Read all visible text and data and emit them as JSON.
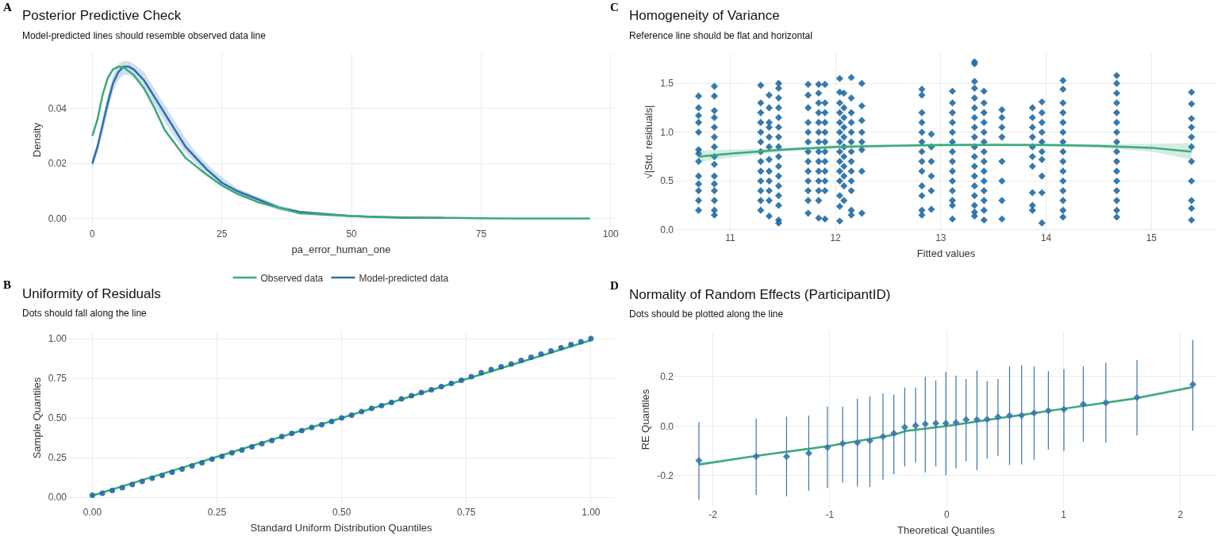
{
  "chart_data": [
    {
      "type": "line",
      "title": "Posterior Predictive Check",
      "subtitle": "Model-predicted lines should resemble observed data line",
      "xlabel": "pa_error_human_one",
      "ylabel": "Density",
      "annotations": [
        "A"
      ],
      "xlim": [
        -4.8,
        100.8
      ],
      "ylim": [
        -0.0029,
        0.0599
      ],
      "xticks": [
        0,
        25,
        50,
        75,
        100
      ],
      "yticks": [
        {
          "value": 0,
          "label": "0.00"
        },
        {
          "value": 0.02,
          "label": "0.02"
        },
        {
          "value": 0.04,
          "label": "0.04"
        }
      ],
      "grid": true,
      "legend": "bottom",
      "series": [
        {
          "name": "Model-predicted data",
          "color": "#2c6fae",
          "x": [
            0,
            1,
            2,
            3,
            4,
            5,
            6,
            7,
            8,
            10,
            12,
            14,
            16,
            18,
            20,
            22,
            25,
            28,
            32,
            36,
            40,
            45,
            50,
            55,
            60,
            68
          ],
          "values": [
            0.02,
            0.026,
            0.034,
            0.042,
            0.049,
            0.053,
            0.055,
            0.055,
            0.054,
            0.05,
            0.044,
            0.038,
            0.032,
            0.026,
            0.022,
            0.018,
            0.013,
            0.01,
            0.007,
            0.004,
            0.0025,
            0.0017,
            0.001,
            0.0007,
            0.0005,
            0.0003
          ],
          "lower": [
            0.018,
            0.024,
            0.031,
            0.039,
            0.046,
            0.05,
            0.052,
            0.052,
            0.051,
            0.047,
            0.041,
            0.035,
            0.029,
            0.024,
            0.02,
            0.016,
            0.012,
            0.009,
            0.006,
            0.003,
            0.002,
            0.001,
            0.0006,
            0.0004,
            0.0002,
            0.0001
          ],
          "upper": [
            0.022,
            0.028,
            0.037,
            0.045,
            0.052,
            0.056,
            0.057,
            0.057,
            0.056,
            0.053,
            0.047,
            0.041,
            0.035,
            0.029,
            0.024,
            0.02,
            0.015,
            0.011,
            0.008,
            0.005,
            0.003,
            0.0022,
            0.0014,
            0.001,
            0.0008,
            0.0005
          ]
        },
        {
          "name": "Observed data",
          "color": "#3aaa7a",
          "x": [
            0,
            1,
            2,
            3,
            4,
            5,
            6,
            8,
            10,
            12,
            14,
            16,
            18,
            20,
            22,
            25,
            28,
            32,
            36,
            40,
            45,
            50,
            55,
            60,
            70,
            75,
            80,
            96
          ],
          "values": [
            0.03,
            0.036,
            0.045,
            0.051,
            0.054,
            0.055,
            0.0548,
            0.052,
            0.047,
            0.04,
            0.032,
            0.027,
            0.022,
            0.019,
            0.016,
            0.012,
            0.009,
            0.006,
            0.004,
            0.002,
            0.0015,
            0.001,
            0.0006,
            0.0003,
            0.0003,
            0.0002,
            0.0001,
            0.0001
          ]
        }
      ]
    },
    {
      "type": "scatter",
      "title": "Homogeneity of Variance",
      "subtitle": "Reference line should be flat and horizontal",
      "xlabel": "Fitted values",
      "ylabel": "√|Std. residuals|",
      "annotations": [
        "C"
      ],
      "xlim": [
        10.47,
        15.63
      ],
      "ylim": [
        -0.01,
        1.81
      ],
      "xticks": [
        11,
        12,
        13,
        14,
        15
      ],
      "yticks": [
        {
          "value": 0,
          "label": "0.0"
        },
        0.5,
        {
          "value": 1,
          "label": "1.0"
        },
        1.5
      ],
      "grid": true,
      "series": [
        {
          "color": "#1f6aa5",
          "marker": "diamond",
          "x": [
            10.7,
            10.7,
            10.7,
            10.7,
            10.7,
            10.7,
            10.7,
            10.7,
            10.7,
            10.7,
            10.7,
            10.7,
            10.7,
            10.85,
            10.85,
            10.85,
            10.85,
            10.85,
            10.85,
            10.85,
            10.85,
            10.85,
            10.85,
            10.85,
            10.85,
            10.85,
            10.85,
            10.85,
            11.29,
            11.29,
            11.29,
            11.29,
            11.29,
            11.29,
            11.29,
            11.29,
            11.29,
            11.29,
            11.29,
            11.29,
            11.29,
            11.37,
            11.37,
            11.37,
            11.37,
            11.37,
            11.37,
            11.37,
            11.37,
            11.37,
            11.37,
            11.37,
            11.37,
            11.46,
            11.46,
            11.46,
            11.46,
            11.46,
            11.46,
            11.46,
            11.46,
            11.46,
            11.46,
            11.46,
            11.46,
            11.46,
            11.46,
            11.46,
            11.46,
            11.74,
            11.74,
            11.74,
            11.74,
            11.74,
            11.74,
            11.74,
            11.74,
            11.74,
            11.74,
            11.74,
            11.74,
            11.74,
            11.84,
            11.84,
            11.84,
            11.84,
            11.84,
            11.84,
            11.84,
            11.84,
            11.84,
            11.84,
            11.84,
            11.84,
            11.84,
            11.84,
            11.9,
            11.9,
            11.9,
            11.9,
            11.9,
            11.9,
            11.9,
            11.9,
            11.9,
            11.9,
            11.9,
            11.9,
            12.04,
            12.04,
            12.04,
            12.04,
            12.04,
            12.04,
            12.04,
            12.04,
            12.04,
            12.04,
            12.04,
            12.04,
            12.04,
            12.04,
            12.08,
            12.08,
            12.08,
            12.08,
            12.08,
            12.08,
            12.08,
            12.08,
            12.08,
            12.08,
            12.08,
            12.15,
            12.15,
            12.15,
            12.15,
            12.15,
            12.15,
            12.15,
            12.15,
            12.15,
            12.15,
            12.15,
            12.15,
            12.15,
            12.25,
            12.25,
            12.25,
            12.25,
            12.25,
            12.25,
            12.25,
            12.25,
            12.82,
            12.82,
            12.82,
            12.82,
            12.82,
            12.82,
            12.82,
            12.82,
            12.82,
            12.82,
            12.82,
            12.82,
            12.82,
            12.91,
            12.91,
            12.91,
            12.91,
            12.91,
            12.91,
            13.11,
            13.11,
            13.11,
            13.11,
            13.11,
            13.11,
            13.11,
            13.11,
            13.11,
            13.11,
            13.11,
            13.11,
            13.11,
            13.11,
            13.32,
            13.32,
            13.32,
            13.32,
            13.32,
            13.32,
            13.32,
            13.32,
            13.32,
            13.32,
            13.32,
            13.32,
            13.32,
            13.32,
            13.32,
            13.32,
            13.32,
            13.32,
            13.41,
            13.41,
            13.41,
            13.41,
            13.41,
            13.41,
            13.41,
            13.41,
            13.41,
            13.41,
            13.41,
            13.41,
            13.41,
            13.41,
            13.58,
            13.58,
            13.58,
            13.58,
            13.58,
            13.58,
            13.58,
            13.58,
            13.87,
            13.87,
            13.87,
            13.87,
            13.87,
            13.87,
            13.87,
            13.87,
            13.87,
            13.87,
            13.96,
            13.96,
            13.96,
            13.96,
            13.96,
            13.96,
            13.96,
            13.96,
            13.96,
            13.96,
            14.16,
            14.16,
            14.16,
            14.16,
            14.16,
            14.16,
            14.16,
            14.16,
            14.16,
            14.16,
            14.16,
            14.16,
            14.16,
            14.16,
            14.16,
            14.67,
            14.67,
            14.67,
            14.67,
            14.67,
            14.67,
            14.67,
            14.67,
            14.67,
            14.67,
            14.67,
            14.67,
            14.67,
            14.67,
            14.67,
            14.67,
            15.38,
            15.38,
            15.38,
            15.38,
            15.38,
            15.38,
            15.38,
            15.38,
            15.38,
            15.38,
            15.38
          ],
          "values": [
            1.37,
            1.25,
            1.17,
            1.1,
            1.0,
            0.82,
            0.78,
            0.7,
            0.55,
            0.47,
            0.4,
            0.3,
            0.2,
            1.47,
            1.37,
            1.22,
            1.15,
            1.05,
            0.95,
            0.85,
            0.75,
            0.67,
            0.55,
            0.47,
            0.4,
            0.3,
            0.2,
            0.15,
            1.48,
            1.3,
            1.2,
            1.1,
            1.0,
            0.9,
            0.8,
            0.7,
            0.6,
            0.5,
            0.4,
            0.3,
            0.2,
            1.38,
            1.25,
            1.1,
            1.05,
            0.95,
            0.85,
            0.72,
            0.6,
            0.5,
            0.4,
            0.3,
            0.14,
            1.5,
            1.45,
            1.35,
            1.25,
            1.15,
            1.05,
            0.95,
            0.85,
            0.75,
            0.65,
            0.55,
            0.45,
            0.35,
            0.25,
            0.1,
            0.07,
            1.49,
            1.38,
            1.25,
            1.1,
            1.0,
            0.9,
            0.8,
            0.7,
            0.6,
            0.5,
            0.4,
            0.3,
            0.17,
            1.49,
            1.4,
            1.3,
            1.2,
            1.1,
            1.0,
            0.9,
            0.8,
            0.7,
            0.6,
            0.5,
            0.4,
            0.3,
            0.12,
            1.49,
            1.3,
            1.2,
            1.1,
            1.0,
            0.9,
            0.8,
            0.7,
            0.6,
            0.5,
            0.4,
            0.11,
            1.55,
            1.41,
            1.3,
            1.2,
            1.1,
            1.0,
            0.9,
            0.8,
            0.7,
            0.6,
            0.5,
            0.35,
            0.24,
            0.09,
            1.4,
            1.25,
            1.15,
            1.05,
            0.95,
            0.85,
            0.75,
            0.65,
            0.55,
            0.45,
            0.3,
            1.56,
            1.35,
            1.2,
            1.1,
            1.0,
            0.9,
            0.8,
            0.7,
            0.6,
            0.5,
            0.4,
            0.2,
            0.15,
            1.5,
            1.27,
            1.12,
            1.0,
            0.9,
            0.82,
            0.6,
            0.17,
            1.44,
            1.38,
            1.2,
            1.1,
            1.0,
            0.9,
            0.8,
            0.7,
            0.6,
            0.45,
            0.35,
            0.2,
            0.15,
            0.98,
            0.85,
            0.7,
            0.55,
            0.4,
            0.21,
            1.42,
            1.3,
            1.2,
            1.1,
            1.0,
            0.9,
            0.8,
            0.7,
            0.6,
            0.5,
            0.4,
            0.3,
            0.25,
            0.11,
            1.72,
            1.7,
            1.52,
            1.45,
            1.35,
            1.25,
            1.15,
            1.05,
            0.95,
            0.85,
            0.75,
            0.65,
            0.55,
            0.45,
            0.35,
            0.25,
            0.18,
            0.14,
            1.42,
            1.3,
            1.2,
            1.1,
            1.0,
            0.9,
            0.8,
            0.7,
            0.6,
            0.5,
            0.4,
            0.3,
            0.2,
            0.1,
            1.23,
            1.15,
            1.05,
            0.95,
            0.7,
            0.5,
            0.3,
            0.11,
            1.25,
            1.15,
            1.05,
            0.95,
            0.85,
            0.75,
            0.65,
            0.38,
            0.25,
            0.2,
            1.31,
            1.2,
            1.1,
            1.0,
            0.9,
            0.8,
            0.72,
            0.55,
            0.38,
            0.07,
            1.53,
            1.44,
            1.3,
            1.2,
            1.1,
            1.0,
            0.9,
            0.8,
            0.7,
            0.6,
            0.5,
            0.4,
            0.3,
            0.2,
            0.13,
            1.58,
            1.5,
            1.4,
            1.3,
            1.2,
            1.1,
            1.0,
            0.9,
            0.8,
            0.7,
            0.6,
            0.5,
            0.4,
            0.3,
            0.2,
            0.13,
            1.41,
            1.29,
            1.14,
            1.05,
            0.95,
            0.85,
            0.7,
            0.5,
            0.3,
            0.22,
            0.1
          ]
        },
        {
          "type": "line",
          "color": "#3aaa7a",
          "x": [
            10.7,
            11,
            11.5,
            12,
            12.5,
            13,
            13.5,
            14,
            14.5,
            15,
            15.38
          ],
          "values": [
            0.75,
            0.78,
            0.82,
            0.85,
            0.86,
            0.87,
            0.87,
            0.87,
            0.86,
            0.84,
            0.8
          ],
          "lower": [
            0.69,
            0.74,
            0.8,
            0.83,
            0.85,
            0.85,
            0.86,
            0.85,
            0.84,
            0.8,
            0.72
          ],
          "upper": [
            0.81,
            0.82,
            0.84,
            0.87,
            0.88,
            0.88,
            0.89,
            0.88,
            0.88,
            0.88,
            0.89
          ]
        }
      ]
    },
    {
      "type": "scatter",
      "title": "Uniformity of Residuals",
      "subtitle": "Dots should fall along the line",
      "xlabel": "Standard Uniform Distribution Quantiles",
      "ylabel": "Sample Quantiles",
      "annotations": [
        "B"
      ],
      "xlim": [
        -0.05,
        1.048
      ],
      "ylim": [
        -0.05,
        1.05
      ],
      "xticks": [
        {
          "value": 0,
          "label": "0.00"
        },
        {
          "value": 0.25,
          "label": "0.25"
        },
        {
          "value": 0.5,
          "label": "0.50"
        },
        {
          "value": 0.75,
          "label": "0.75"
        },
        {
          "value": 1,
          "label": "1.00"
        }
      ],
      "yticks": [
        {
          "value": 0,
          "label": "0.00"
        },
        {
          "value": 0.25,
          "label": "0.25"
        },
        {
          "value": 0.5,
          "label": "0.50"
        },
        {
          "value": 0.75,
          "label": "0.75"
        },
        {
          "value": 1,
          "label": "1.00"
        }
      ],
      "grid": true,
      "series": [
        {
          "type": "line",
          "color": "#3aaa7a",
          "x": [
            0,
            1
          ],
          "values": [
            0.01,
            0.99
          ]
        },
        {
          "color": "#1f6aa5",
          "marker": "circle",
          "x": [
            0,
            0.02,
            0.04,
            0.06,
            0.08,
            0.1,
            0.12,
            0.14,
            0.16,
            0.18,
            0.2,
            0.22,
            0.24,
            0.26,
            0.28,
            0.3,
            0.32,
            0.34,
            0.36,
            0.38,
            0.4,
            0.42,
            0.44,
            0.46,
            0.48,
            0.5,
            0.52,
            0.54,
            0.56,
            0.58,
            0.6,
            0.62,
            0.64,
            0.66,
            0.68,
            0.7,
            0.72,
            0.74,
            0.76,
            0.78,
            0.8,
            0.82,
            0.84,
            0.86,
            0.88,
            0.9,
            0.92,
            0.94,
            0.96,
            0.98,
            1
          ],
          "values": [
            0.012,
            0.025,
            0.042,
            0.06,
            0.08,
            0.1,
            0.12,
            0.138,
            0.158,
            0.178,
            0.198,
            0.218,
            0.24,
            0.258,
            0.28,
            0.298,
            0.318,
            0.338,
            0.358,
            0.382,
            0.402,
            0.42,
            0.44,
            0.458,
            0.478,
            0.5,
            0.518,
            0.54,
            0.56,
            0.578,
            0.598,
            0.62,
            0.64,
            0.66,
            0.678,
            0.698,
            0.718,
            0.738,
            0.76,
            0.785,
            0.805,
            0.822,
            0.84,
            0.862,
            0.882,
            0.902,
            0.922,
            0.942,
            0.962,
            0.98,
            1.0
          ]
        }
      ]
    },
    {
      "type": "scatter",
      "title": "Normality of Random Effects (ParticipantID)",
      "subtitle": "Dots should be plotted along the line",
      "xlabel": "Theoretical Quantiles",
      "ylabel": "RE Quantiles",
      "annotations": [
        "D"
      ],
      "xlim": [
        -2.33,
        2.32
      ],
      "ylim": [
        -0.328,
        0.381
      ],
      "xticks": [
        -2,
        -1,
        0,
        1,
        2
      ],
      "yticks": [
        -0.2,
        {
          "value": 0,
          "label": "0.0"
        },
        0.2
      ],
      "grid": true,
      "series": [
        {
          "type": "line",
          "color": "#3aaa7a",
          "x": [
            -2.12,
            -1.63,
            -1.0,
            -0.45,
            -0.35,
            0,
            0.5,
            1.0,
            1.6,
            2.106
          ],
          "values": [
            -0.155,
            -0.12,
            -0.08,
            -0.035,
            -0.02,
            0.0,
            0.035,
            0.07,
            0.11,
            0.157
          ],
          "lower": [
            -0.162,
            -0.125,
            -0.084,
            -0.039,
            -0.024,
            -0.004,
            0.031,
            0.066,
            0.105,
            0.15
          ],
          "upper": [
            -0.148,
            -0.115,
            -0.076,
            -0.031,
            -0.016,
            0.004,
            0.039,
            0.074,
            0.115,
            0.164
          ]
        },
        {
          "color": "#3a76af",
          "marker": "diamond",
          "x": [
            -2.12,
            -1.63,
            -1.37,
            -1.18,
            -1.02,
            -0.89,
            -0.764,
            -0.657,
            -0.545,
            -0.452,
            -0.359,
            -0.266,
            -0.183,
            -0.093,
            -0.007,
            0.08,
            0.166,
            0.259,
            0.346,
            0.439,
            0.538,
            0.641,
            0.748,
            0.87,
            1.003,
            1.169,
            1.362,
            1.628,
            2.106
          ],
          "values": [
            -0.139,
            -0.122,
            -0.123,
            -0.109,
            -0.086,
            -0.07,
            -0.067,
            -0.059,
            -0.042,
            -0.029,
            -0.005,
            0.002,
            0.008,
            0.011,
            0.011,
            0.014,
            0.026,
            0.026,
            0.027,
            0.037,
            0.042,
            0.043,
            0.053,
            0.062,
            0.067,
            0.088,
            0.094,
            0.115,
            0.168
          ],
          "errors": [
            [
              -0.296,
              0.016
            ],
            [
              -0.277,
              0.03
            ],
            [
              -0.283,
              0.038
            ],
            [
              -0.261,
              0.042
            ],
            [
              -0.25,
              0.078
            ],
            [
              -0.227,
              0.078
            ],
            [
              -0.243,
              0.11
            ],
            [
              -0.246,
              0.12
            ],
            [
              -0.216,
              0.131
            ],
            [
              -0.194,
              0.126
            ],
            [
              -0.163,
              0.155
            ],
            [
              -0.147,
              0.155
            ],
            [
              -0.187,
              0.198
            ],
            [
              -0.163,
              0.184
            ],
            [
              -0.198,
              0.218
            ],
            [
              -0.171,
              0.203
            ],
            [
              -0.142,
              0.189
            ],
            [
              -0.178,
              0.224
            ],
            [
              -0.131,
              0.181
            ],
            [
              -0.12,
              0.189
            ],
            [
              -0.157,
              0.24
            ],
            [
              -0.154,
              0.245
            ],
            [
              -0.136,
              0.24
            ],
            [
              -0.094,
              0.221
            ],
            [
              -0.101,
              0.229
            ],
            [
              -0.062,
              0.24
            ],
            [
              -0.067,
              0.256
            ],
            [
              -0.037,
              0.266
            ],
            [
              -0.019,
              0.347
            ]
          ]
        }
      ]
    }
  ]
}
